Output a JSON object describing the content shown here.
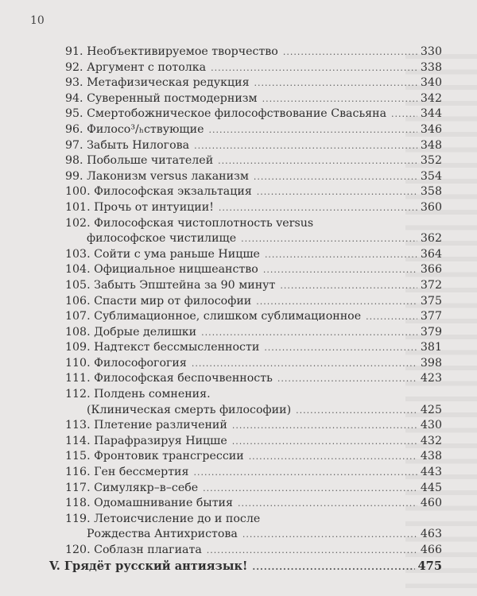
{
  "page_number": "10",
  "entries": [
    {
      "num": "91.",
      "lines": [
        "Необъективируемое творчество"
      ],
      "page": "330"
    },
    {
      "num": "92.",
      "lines": [
        "Аргумент с потолка"
      ],
      "page": "338"
    },
    {
      "num": "93.",
      "lines": [
        "Метафизическая редукция"
      ],
      "page": "340"
    },
    {
      "num": "94.",
      "lines": [
        "Суверенный постмодернизм"
      ],
      "page": "342"
    },
    {
      "num": "95.",
      "lines": [
        "Смертобожническое философствование Свасьяна"
      ],
      "page": "344"
    },
    {
      "num": "96.",
      "lines": [
        "Филосо³/ₕствующие"
      ],
      "page": "346"
    },
    {
      "num": "97.",
      "lines": [
        "Забыть Нилогова"
      ],
      "page": "348"
    },
    {
      "num": "98.",
      "lines": [
        "Побольше читателей"
      ],
      "page": "352"
    },
    {
      "num": "99.",
      "lines": [
        "Лаконизм versus лаканизм"
      ],
      "page": "354"
    },
    {
      "num": "100.",
      "lines": [
        "Философская экзальтация"
      ],
      "page": "358"
    },
    {
      "num": "101.",
      "lines": [
        "Прочь от интуиции!"
      ],
      "page": "360"
    },
    {
      "num": "102.",
      "lines": [
        "Философская чистоплотность versus",
        "философское чистилище"
      ],
      "page": "362"
    },
    {
      "num": "103.",
      "lines": [
        "Сойти с ума раньше Ницше"
      ],
      "page": "364"
    },
    {
      "num": "104.",
      "lines": [
        "Официальное ницшеанство"
      ],
      "page": "366"
    },
    {
      "num": "105.",
      "lines": [
        "Забыть Эпштейна за 90 минут"
      ],
      "page": "372"
    },
    {
      "num": "106.",
      "lines": [
        "Спасти мир от философии"
      ],
      "page": "375"
    },
    {
      "num": "107.",
      "lines": [
        "Сублимационное, слишком сублимационное"
      ],
      "page": "377"
    },
    {
      "num": "108.",
      "lines": [
        "Добрые делишки"
      ],
      "page": "379"
    },
    {
      "num": "109.",
      "lines": [
        "Надтекст бессмысленности"
      ],
      "page": "381"
    },
    {
      "num": "110.",
      "lines": [
        "Философогогия"
      ],
      "page": "398"
    },
    {
      "num": "111.",
      "lines": [
        "Философская беспочвенность"
      ],
      "page": "423"
    },
    {
      "num": "112.",
      "lines": [
        "Полдень сомнения.",
        "(Клиническая смерть философии)"
      ],
      "page": "425"
    },
    {
      "num": "113.",
      "lines": [
        "Плетение различений"
      ],
      "page": "430"
    },
    {
      "num": "114.",
      "lines": [
        "Парафразируя Ницше"
      ],
      "page": "432"
    },
    {
      "num": "115.",
      "lines": [
        "Фронтовик трансгрессии"
      ],
      "page": "438"
    },
    {
      "num": "116.",
      "lines": [
        "Ген бессмертия"
      ],
      "page": "443"
    },
    {
      "num": "117.",
      "lines": [
        "Симулякр–в–себе"
      ],
      "page": "445"
    },
    {
      "num": "118.",
      "lines": [
        "Одомашнивание бытия"
      ],
      "page": "460"
    },
    {
      "num": "119.",
      "lines": [
        "Летоисчисление до и после",
        "Рождества Антихристова"
      ],
      "page": "463"
    },
    {
      "num": "120.",
      "lines": [
        "Соблазн плагиата"
      ],
      "page": "466"
    }
  ],
  "section": {
    "title": "V. Грядёт русский антиязык!",
    "page": "475"
  }
}
